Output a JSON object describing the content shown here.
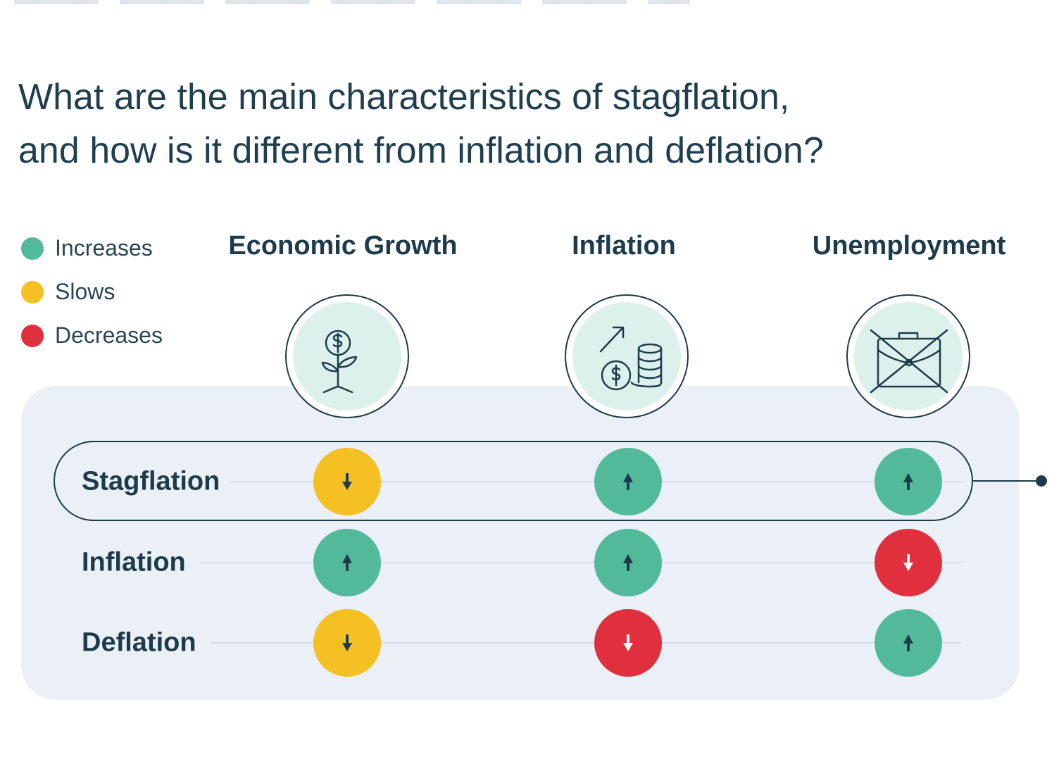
{
  "title": {
    "line1": "What are the main characteristics of stagflation,",
    "line2": "and how is it different from inflation and deflation?"
  },
  "legend": [
    {
      "label": "Increases",
      "color": "#52b99a"
    },
    {
      "label": "Slows",
      "color": "#f5c023"
    },
    {
      "label": "Decreases",
      "color": "#e0303e"
    }
  ],
  "columns": [
    {
      "label": "Economic Growth",
      "icon": "plant-dollar-icon"
    },
    {
      "label": "Inflation",
      "icon": "rising-coins-icon"
    },
    {
      "label": "Unemployment",
      "icon": "crossed-briefcase-icon"
    }
  ],
  "rows": [
    {
      "label": "Stagflation",
      "highlighted": true,
      "values": [
        "slows",
        "increases",
        "increases"
      ]
    },
    {
      "label": "Inflation",
      "highlighted": false,
      "values": [
        "increases",
        "increases",
        "decreases"
      ]
    },
    {
      "label": "Deflation",
      "highlighted": false,
      "values": [
        "slows",
        "decreases",
        "increases"
      ]
    }
  ],
  "colors": {
    "increases": "#52b99a",
    "slows": "#f5c023",
    "decreases": "#e0303e",
    "ink": "#1d3b4a",
    "panel": "#eaf0f6",
    "icon_fill": "#dcf0ec"
  }
}
